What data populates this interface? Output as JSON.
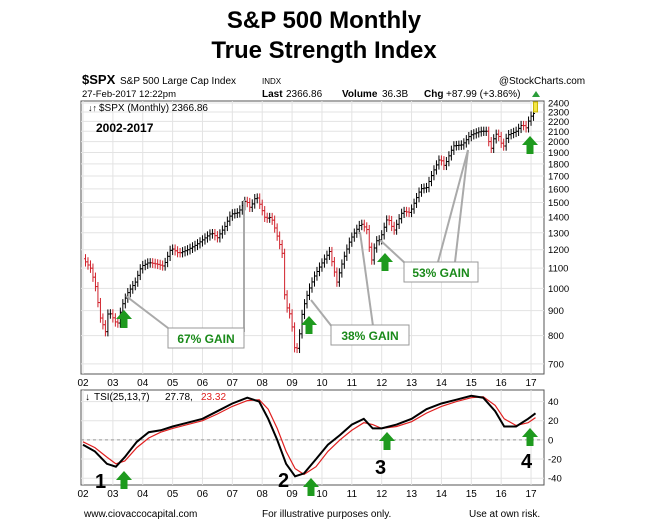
{
  "title_line1": "S&P 500 Monthly",
  "title_line2": "True Strength Index",
  "header": {
    "symbol": "$SPX",
    "name": "S&P 500 Large Cap Index",
    "exchange": "INDX",
    "source": "@StockCharts.com",
    "date": "27-Feb-2017 12:22pm",
    "last_label": "Last",
    "last_value": "2366.86",
    "volume_label": "Volume",
    "volume_value": "36.3B",
    "chg_label": "Chg",
    "chg_value": "+87.99 (+3.86%)"
  },
  "price_legend": "$SPX (Monthly) 2366.86",
  "range_label": "2002-2017",
  "tsi_legend": {
    "prefix": "TSI(25,13,7)",
    "value": "27.78,",
    "signal": "23.32"
  },
  "footer": {
    "website": "www.ciovaccocapital.com",
    "note": "For illustrative purposes only.",
    "risk": "Use at own risk."
  },
  "chart_data": [
    {
      "type": "line",
      "title": "$SPX (Monthly) 2366.86",
      "log_scale": true,
      "ylim": [
        680,
        2400
      ],
      "y_ticks": [
        700,
        800,
        900,
        1000,
        1100,
        1200,
        1300,
        1400,
        1500,
        1600,
        1700,
        1800,
        1900,
        2000,
        2100,
        2200,
        2300,
        2400
      ],
      "x_ticks": [
        "02",
        "03",
        "04",
        "05",
        "06",
        "07",
        "08",
        "09",
        "10",
        "11",
        "12",
        "13",
        "14",
        "15",
        "16",
        "17"
      ],
      "grid": true,
      "series": [
        {
          "values": [
            [
              2002.0,
              1150
            ],
            [
              2002.25,
              1100
            ],
            [
              2002.45,
              990
            ],
            [
              2002.55,
              880
            ],
            [
              2002.75,
              815
            ],
            [
              2002.85,
              900
            ],
            [
              2002.95,
              880
            ],
            [
              2003.15,
              840
            ],
            [
              2003.3,
              920
            ],
            [
              2003.5,
              980
            ],
            [
              2003.75,
              1030
            ],
            [
              2003.95,
              1110
            ],
            [
              2004.2,
              1130
            ],
            [
              2004.5,
              1120
            ],
            [
              2004.7,
              1110
            ],
            [
              2004.95,
              1210
            ],
            [
              2005.2,
              1180
            ],
            [
              2005.5,
              1200
            ],
            [
              2005.8,
              1230
            ],
            [
              2005.95,
              1250
            ],
            [
              2006.3,
              1300
            ],
            [
              2006.5,
              1270
            ],
            [
              2006.75,
              1340
            ],
            [
              2006.95,
              1420
            ],
            [
              2007.2,
              1430
            ],
            [
              2007.45,
              1520
            ],
            [
              2007.6,
              1460
            ],
            [
              2007.8,
              1550
            ],
            [
              2007.95,
              1470
            ],
            [
              2008.1,
              1390
            ],
            [
              2008.3,
              1400
            ],
            [
              2008.5,
              1280
            ],
            [
              2008.7,
              1160
            ],
            [
              2008.75,
              970
            ],
            [
              2008.85,
              900
            ],
            [
              2008.95,
              880
            ],
            [
              2009.1,
              740
            ],
            [
              2009.2,
              760
            ],
            [
              2009.35,
              900
            ],
            [
              2009.55,
              990
            ],
            [
              2009.75,
              1060
            ],
            [
              2009.95,
              1115
            ],
            [
              2010.25,
              1190
            ],
            [
              2010.4,
              1090
            ],
            [
              2010.5,
              1030
            ],
            [
              2010.7,
              1140
            ],
            [
              2010.95,
              1260
            ],
            [
              2011.3,
              1360
            ],
            [
              2011.5,
              1320
            ],
            [
              2011.65,
              1130
            ],
            [
              2011.8,
              1250
            ],
            [
              2011.95,
              1260
            ],
            [
              2012.2,
              1400
            ],
            [
              2012.4,
              1310
            ],
            [
              2012.7,
              1440
            ],
            [
              2012.95,
              1430
            ],
            [
              2013.3,
              1600
            ],
            [
              2013.5,
              1610
            ],
            [
              2013.75,
              1750
            ],
            [
              2013.95,
              1850
            ],
            [
              2014.1,
              1780
            ],
            [
              2014.4,
              1960
            ],
            [
              2014.7,
              1970
            ],
            [
              2014.95,
              2060
            ],
            [
              2015.3,
              2100
            ],
            [
              2015.5,
              2100
            ],
            [
              2015.65,
              1920
            ],
            [
              2015.8,
              2080
            ],
            [
              2015.95,
              2040
            ],
            [
              2016.05,
              1930
            ],
            [
              2016.2,
              2060
            ],
            [
              2016.5,
              2100
            ],
            [
              2016.7,
              2170
            ],
            [
              2016.85,
              2130
            ],
            [
              2016.95,
              2240
            ],
            [
              2017.08,
              2280
            ],
            [
              2017.15,
              2366.86
            ]
          ]
        }
      ],
      "annotations": [
        "67% GAIN",
        "38% GAIN",
        "53% GAIN"
      ]
    },
    {
      "type": "line",
      "title": "TSI(25,13,7) 27.78, 23.32",
      "ylim": [
        -45,
        50
      ],
      "y_ticks": [
        -40,
        -20,
        0,
        20,
        40
      ],
      "x_ticks": [
        "02",
        "03",
        "04",
        "05",
        "06",
        "07",
        "08",
        "09",
        "10",
        "11",
        "12",
        "13",
        "14",
        "15",
        "16",
        "17"
      ],
      "series": [
        {
          "values": [
            [
              2002.0,
              -5
            ],
            [
              2002.4,
              -12
            ],
            [
              2002.8,
              -25
            ],
            [
              2003.1,
              -28
            ],
            [
              2003.4,
              -18
            ],
            [
              2003.8,
              -2
            ],
            [
              2004.2,
              8
            ],
            [
              2004.6,
              10
            ],
            [
              2005.0,
              14
            ],
            [
              2005.5,
              18
            ],
            [
              2006.0,
              22
            ],
            [
              2006.5,
              30
            ],
            [
              2007.0,
              38
            ],
            [
              2007.5,
              44
            ],
            [
              2007.9,
              40
            ],
            [
              2008.2,
              22
            ],
            [
              2008.5,
              0
            ],
            [
              2008.8,
              -25
            ],
            [
              2009.1,
              -38
            ],
            [
              2009.4,
              -35
            ],
            [
              2009.8,
              -20
            ],
            [
              2010.2,
              -5
            ],
            [
              2010.6,
              5
            ],
            [
              2011.0,
              16
            ],
            [
              2011.4,
              22
            ],
            [
              2011.7,
              12
            ],
            [
              2012.0,
              12
            ],
            [
              2012.5,
              16
            ],
            [
              2013.0,
              22
            ],
            [
              2013.5,
              32
            ],
            [
              2014.0,
              38
            ],
            [
              2014.5,
              42
            ],
            [
              2015.0,
              46
            ],
            [
              2015.4,
              44
            ],
            [
              2015.8,
              30
            ],
            [
              2016.1,
              14
            ],
            [
              2016.5,
              14
            ],
            [
              2016.9,
              22
            ],
            [
              2017.15,
              27.78
            ]
          ]
        },
        {
          "values": [
            [
              2002.0,
              -2
            ],
            [
              2002.4,
              -8
            ],
            [
              2002.8,
              -18
            ],
            [
              2003.1,
              -25
            ],
            [
              2003.4,
              -22
            ],
            [
              2003.8,
              -8
            ],
            [
              2004.2,
              2
            ],
            [
              2004.6,
              8
            ],
            [
              2005.0,
              12
            ],
            [
              2005.5,
              16
            ],
            [
              2006.0,
              20
            ],
            [
              2006.5,
              27
            ],
            [
              2007.0,
              35
            ],
            [
              2007.5,
              41
            ],
            [
              2007.9,
              42
            ],
            [
              2008.2,
              32
            ],
            [
              2008.5,
              12
            ],
            [
              2008.8,
              -12
            ],
            [
              2009.1,
              -30
            ],
            [
              2009.4,
              -36
            ],
            [
              2009.8,
              -28
            ],
            [
              2010.2,
              -12
            ],
            [
              2010.6,
              0
            ],
            [
              2011.0,
              10
            ],
            [
              2011.4,
              18
            ],
            [
              2011.7,
              16
            ],
            [
              2012.0,
              12
            ],
            [
              2012.5,
              14
            ],
            [
              2013.0,
              19
            ],
            [
              2013.5,
              28
            ],
            [
              2014.0,
              35
            ],
            [
              2014.5,
              40
            ],
            [
              2015.0,
              44
            ],
            [
              2015.4,
              45
            ],
            [
              2015.8,
              36
            ],
            [
              2016.1,
              22
            ],
            [
              2016.5,
              15
            ],
            [
              2016.9,
              18
            ],
            [
              2017.15,
              23.32
            ]
          ]
        }
      ],
      "annotations": [
        "1",
        "2",
        "3",
        "4"
      ]
    }
  ]
}
